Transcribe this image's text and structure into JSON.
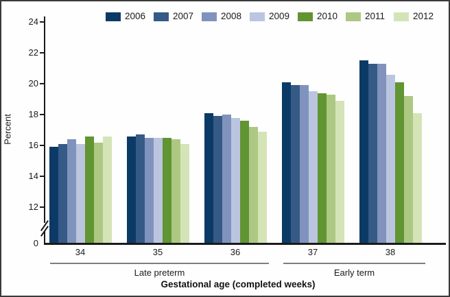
{
  "figure": {
    "type": "grouped-bar-chart",
    "background": "#fefefe",
    "border_color": "#3a3a3a"
  },
  "y_axis": {
    "label": "Percent",
    "ticks": [
      24,
      22,
      20,
      18,
      16,
      14,
      12
    ],
    "baseline_label": "0",
    "has_break": true
  },
  "x_axis": {
    "title": "Gestational age (completed weeks)",
    "categories": [
      "34",
      "35",
      "36",
      "37",
      "38"
    ]
  },
  "chart_data": {
    "type": "bar",
    "title": "",
    "xlabel": "Gestational age (completed weeks)",
    "ylabel": "Percent",
    "categories": [
      "34",
      "35",
      "36",
      "37",
      "38"
    ],
    "category_groups": [
      {
        "label": "Late preterm",
        "categories": [
          "34",
          "35",
          "36"
        ]
      },
      {
        "label": "Early term",
        "categories": [
          "37",
          "38"
        ]
      }
    ],
    "series": [
      {
        "name": "2006",
        "color": "#0c3a66",
        "values": [
          15.9,
          16.6,
          18.1,
          20.1,
          21.5
        ]
      },
      {
        "name": "2007",
        "color": "#355a85",
        "values": [
          16.1,
          16.7,
          17.9,
          19.9,
          21.3
        ]
      },
      {
        "name": "2008",
        "color": "#8093bd",
        "values": [
          16.4,
          16.5,
          18.0,
          19.9,
          21.3
        ]
      },
      {
        "name": "2009",
        "color": "#bcc5e0",
        "values": [
          16.1,
          16.5,
          17.8,
          19.5,
          20.6
        ]
      },
      {
        "name": "2010",
        "color": "#619432",
        "values": [
          16.6,
          16.5,
          17.6,
          19.4,
          20.1
        ]
      },
      {
        "name": "2011",
        "color": "#adc883",
        "values": [
          16.2,
          16.4,
          17.2,
          19.3,
          19.2
        ]
      },
      {
        "name": "2012",
        "color": "#d5e4b6",
        "values": [
          16.6,
          16.1,
          16.9,
          18.9,
          18.1
        ]
      }
    ],
    "y_display_range": [
      12,
      24
    ],
    "y_axis_break": true,
    "grid": false,
    "legend_position": "top"
  }
}
